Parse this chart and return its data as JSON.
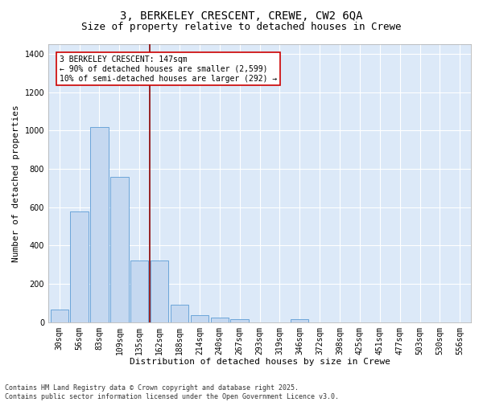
{
  "title_line1": "3, BERKELEY CRESCENT, CREWE, CW2 6QA",
  "title_line2": "Size of property relative to detached houses in Crewe",
  "xlabel": "Distribution of detached houses by size in Crewe",
  "ylabel": "Number of detached properties",
  "categories": [
    "30sqm",
    "56sqm",
    "83sqm",
    "109sqm",
    "135sqm",
    "162sqm",
    "188sqm",
    "214sqm",
    "240sqm",
    "267sqm",
    "293sqm",
    "319sqm",
    "346sqm",
    "372sqm",
    "398sqm",
    "425sqm",
    "451sqm",
    "477sqm",
    "503sqm",
    "530sqm",
    "556sqm"
  ],
  "values": [
    65,
    578,
    1020,
    760,
    320,
    320,
    90,
    38,
    25,
    15,
    0,
    0,
    15,
    0,
    0,
    0,
    0,
    0,
    0,
    0,
    0
  ],
  "bar_color": "#c5d8f0",
  "bar_edge_color": "#5b9bd5",
  "fig_background_color": "#ffffff",
  "plot_background_color": "#dce9f8",
  "grid_color": "#ffffff",
  "vline_x": 4.5,
  "vline_color": "#8b0000",
  "annotation_text": "3 BERKELEY CRESCENT: 147sqm\n← 90% of detached houses are smaller (2,599)\n10% of semi-detached houses are larger (292) →",
  "annotation_box_color": "#cc0000",
  "ylim": [
    0,
    1450
  ],
  "yticks": [
    0,
    200,
    400,
    600,
    800,
    1000,
    1200,
    1400
  ],
  "footer_text": "Contains HM Land Registry data © Crown copyright and database right 2025.\nContains public sector information licensed under the Open Government Licence v3.0.",
  "title_fontsize": 10,
  "subtitle_fontsize": 9,
  "axis_label_fontsize": 8,
  "tick_fontsize": 7,
  "annotation_fontsize": 7,
  "footer_fontsize": 6
}
